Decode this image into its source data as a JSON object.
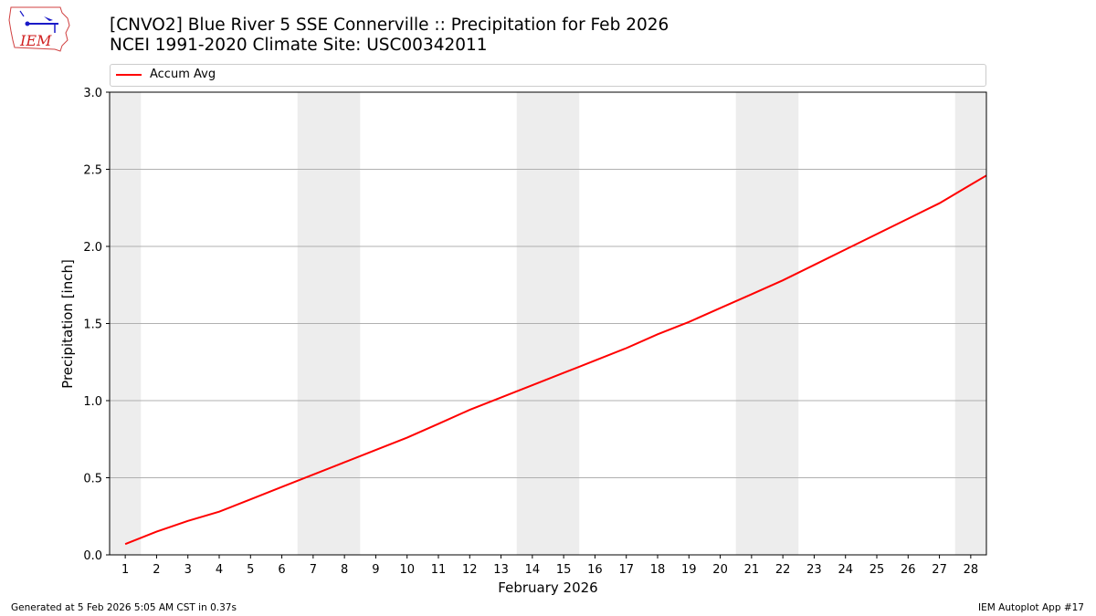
{
  "header": {
    "title_line1": "[CNVO2] Blue River 5 SSE Connerville :: Precipitation for Feb 2026",
    "title_line2": "NCEI 1991-2020 Climate Site: USC00342011",
    "logo_text": "IEM"
  },
  "legend": {
    "label": "Accum Avg",
    "color": "#ff0000"
  },
  "footer": {
    "generated": "Generated at 5 Feb 2026 5:05 AM CST in 0.37s",
    "app": "IEM Autoplot App #17"
  },
  "chart_data": {
    "type": "line",
    "title": "[CNVO2] Blue River 5 SSE Connerville :: Precipitation for Feb 2026",
    "subtitle": "NCEI 1991-2020 Climate Site: USC00342011",
    "xlabel": "February 2026",
    "ylabel": "Precipitation [inch]",
    "ylim": [
      0,
      3.0
    ],
    "xlim": [
      0.5,
      28.5
    ],
    "yticks": [
      "0.0",
      "0.5",
      "1.0",
      "1.5",
      "2.0",
      "2.5",
      "3.0"
    ],
    "xticks": [
      "1",
      "2",
      "3",
      "4",
      "5",
      "6",
      "7",
      "8",
      "9",
      "10",
      "11",
      "12",
      "13",
      "14",
      "15",
      "16",
      "17",
      "18",
      "19",
      "20",
      "21",
      "22",
      "23",
      "24",
      "25",
      "26",
      "27",
      "28"
    ],
    "grid": "horizontal",
    "legend_position": "top",
    "weekend_shading": [
      [
        0.5,
        1.5
      ],
      [
        6.5,
        8.5
      ],
      [
        13.5,
        15.5
      ],
      [
        20.5,
        22.5
      ],
      [
        27.5,
        28.5
      ]
    ],
    "series": [
      {
        "name": "Accum Avg",
        "color": "#ff0000",
        "x": [
          1,
          2,
          3,
          4,
          5,
          6,
          7,
          8,
          9,
          10,
          11,
          12,
          13,
          14,
          15,
          16,
          17,
          18,
          19,
          20,
          21,
          22,
          23,
          24,
          25,
          26,
          27,
          28,
          28.5
        ],
        "values": [
          0.07,
          0.15,
          0.22,
          0.28,
          0.36,
          0.44,
          0.52,
          0.6,
          0.68,
          0.76,
          0.85,
          0.94,
          1.02,
          1.1,
          1.18,
          1.26,
          1.34,
          1.43,
          1.51,
          1.6,
          1.69,
          1.78,
          1.88,
          1.98,
          2.08,
          2.18,
          2.28,
          2.4,
          2.46
        ]
      }
    ]
  }
}
